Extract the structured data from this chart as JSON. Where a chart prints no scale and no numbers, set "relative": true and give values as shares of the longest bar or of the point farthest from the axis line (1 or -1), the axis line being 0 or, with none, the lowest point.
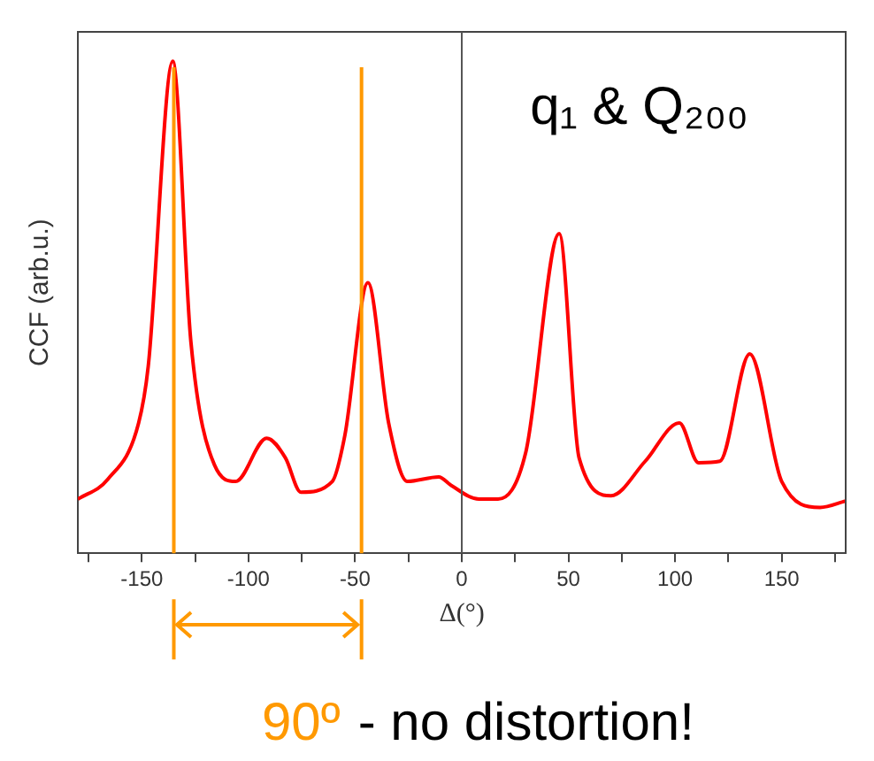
{
  "chart_data": {
    "type": "line",
    "relative": true,
    "xlabel": "Δ(°)",
    "ylabel": "CCF (arb.u.)",
    "xlim": [
      -180,
      180
    ],
    "xticks": [
      {
        "value": -175,
        "label": null
      },
      -150,
      {
        "value": -125,
        "label": null
      },
      -100,
      {
        "value": -75,
        "label": null
      },
      -50,
      {
        "value": -25,
        "label": null
      },
      0,
      {
        "value": 25,
        "label": null
      },
      50,
      {
        "value": 75,
        "label": null
      },
      100,
      {
        "value": 125,
        "label": null
      },
      150,
      {
        "value": 175,
        "label": null
      }
    ],
    "x": [
      -180,
      -166,
      -151.5,
      -147,
      -135.5,
      -127,
      -116,
      -106,
      -91.5,
      -82.7,
      -75.4,
      -60.7,
      -54.8,
      -44,
      -34.3,
      -25.5,
      -10.8,
      -5,
      8,
      17,
      30,
      45.7,
      55,
      70,
      86,
      102,
      111,
      121,
      135,
      150,
      168,
      180
    ],
    "series": [
      {
        "color": "#ff0000",
        "values": [
          0.11,
          0.15,
          0.265,
          0.38,
          1.0,
          0.43,
          0.18,
          0.146,
          0.234,
          0.194,
          0.124,
          0.146,
          0.24,
          0.55,
          0.265,
          0.146,
          0.155,
          0.138,
          0.11,
          0.11,
          0.205,
          0.65,
          0.194,
          0.117,
          0.187,
          0.265,
          0.184,
          0.187,
          0.405,
          0.146,
          0.093,
          0.106
        ]
      }
    ],
    "ref_lines": [
      {
        "axis": "x",
        "value": 0,
        "color": "#555555"
      },
      {
        "axis": "x",
        "value": -135,
        "color": "#ff9900"
      },
      {
        "axis": "x",
        "value": -47,
        "color": "#ff9900"
      }
    ],
    "annotations": [
      "q₁ & Q₂₀₀",
      "90º",
      "- no distortion!"
    ],
    "marker": "none",
    "line_style": "solid",
    "grid": false,
    "legend": false
  }
}
